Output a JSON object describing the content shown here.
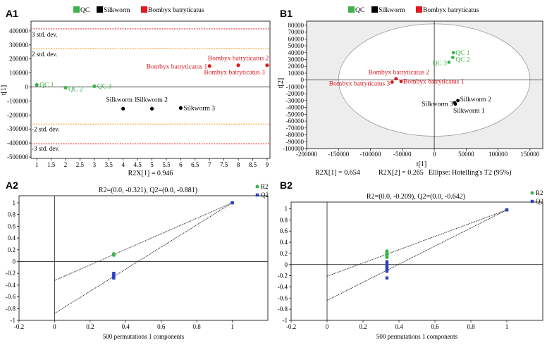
{
  "figure": {
    "colors": {
      "qc": "#3cb44b",
      "silkworm": "#000000",
      "bombyx": "#e0191f",
      "r2": "#3cb44b",
      "q2": "#2b3fc2",
      "limit_red": "#e0191f",
      "limit_orange": "#f0a020",
      "ellipse_fill": "#ededed"
    }
  },
  "chart_data": [
    {
      "id": "A1",
      "panel_label": "A1",
      "type": "scatter",
      "legend": [
        "QC",
        "Silkworm",
        "Bombyx batryticatus"
      ],
      "ylabel": "t[1]",
      "xlabel": "R2X[1] = 0.946",
      "xlim": [
        0.8,
        9.1
      ],
      "ylim": [
        -510000,
        470000
      ],
      "xticks": [
        "1",
        "1.5",
        "2",
        "2.5",
        "3",
        "3.5",
        "4",
        "4.5",
        "5",
        "5.5",
        "6",
        "6.5",
        "7",
        "7.5",
        "8",
        "8.5",
        "9"
      ],
      "yticks": [
        "400000",
        "300000",
        "200000",
        "100000",
        "0",
        "-100000",
        "-200000",
        "-300000",
        "-400000",
        "-500000"
      ],
      "limits": [
        {
          "value": 415000,
          "label": "3 std. dev."
        },
        {
          "value": 275000,
          "label": "2 std. dev."
        },
        {
          "value": -265000,
          "label": "-2 std. dev."
        },
        {
          "value": -405000,
          "label": "-3 std. dev."
        }
      ],
      "points": [
        {
          "group": "qc",
          "x": 1,
          "y": 15000,
          "label": "QC 1"
        },
        {
          "group": "qc",
          "x": 2,
          "y": -5000,
          "label": "QC 2"
        },
        {
          "group": "qc",
          "x": 3,
          "y": 5000,
          "label": "QC 3"
        },
        {
          "group": "silkworm",
          "x": 4,
          "y": -155000,
          "label": "Silkworm 1"
        },
        {
          "group": "silkworm",
          "x": 5,
          "y": -155000,
          "label": "Silkworm 2"
        },
        {
          "group": "silkworm",
          "x": 6,
          "y": -150000,
          "label": "Silkworm 3"
        },
        {
          "group": "bombyx",
          "x": 7,
          "y": 150000,
          "label": "Bombyx batryticatus 1"
        },
        {
          "group": "bombyx",
          "x": 8,
          "y": 155000,
          "label": "Bombyx batryticatus 2"
        },
        {
          "group": "bombyx",
          "x": 9,
          "y": 155000,
          "label": "Bombyx batryticatus 3"
        }
      ]
    },
    {
      "id": "B1",
      "panel_label": "B1",
      "type": "scatter",
      "legend": [
        "QC",
        "Silkworm",
        "Bombyx batryticatus"
      ],
      "ylabel": "t[2]",
      "xlabel": "t[1]",
      "footer": [
        "R2X[1] = 0.654",
        "R2X[2] = 0.265",
        "Ellipse: Hotelling's T2 (95%)"
      ],
      "xlim": [
        -200000,
        170000
      ],
      "ylim": [
        -100000,
        86000
      ],
      "ellipse": {
        "rx": 150000,
        "ry": 82000
      },
      "xticks": [
        "-200000",
        "-150000",
        "-100000",
        "-50000",
        "0",
        "50000",
        "100000",
        "150000"
      ],
      "yticks": [
        "80000",
        "70000",
        "60000",
        "50000",
        "40000",
        "30000",
        "20000",
        "10000",
        "0",
        "-10000",
        "-20000",
        "-30000",
        "-40000",
        "-50000",
        "-60000",
        "-70000",
        "-80000",
        "-90000",
        "-100000"
      ],
      "points": [
        {
          "group": "qc",
          "x": 30000,
          "y": 40000,
          "label": "QC 1"
        },
        {
          "group": "qc",
          "x": 23000,
          "y": 26000,
          "label": "QC 3"
        },
        {
          "group": "qc",
          "x": 29000,
          "y": 33000,
          "label": "QC 2"
        },
        {
          "group": "silkworm",
          "x": 37000,
          "y": -30000,
          "label": "Silkworm 2"
        },
        {
          "group": "silkworm",
          "x": 32000,
          "y": -33000,
          "label": "Silkworm 1"
        },
        {
          "group": "silkworm",
          "x": 33000,
          "y": -35000,
          "label": "Silkworm 3"
        },
        {
          "group": "bombyx",
          "x": -60000,
          "y": 2000,
          "label": "Bombyx batryticatus 2"
        },
        {
          "group": "bombyx",
          "x": -52000,
          "y": -2000,
          "label": "Bombyx batryticatus 1"
        },
        {
          "group": "bombyx",
          "x": -66000,
          "y": -3000,
          "label": "Bombyx batryticatus 3"
        }
      ]
    },
    {
      "id": "A2",
      "panel_label": "A2",
      "type": "scatter",
      "title": "R2=(0.0, -0.321), Q2=(0.0, -0.881)",
      "xlabel": "500 permutations 1 components",
      "legend": [
        "R2",
        "Q2"
      ],
      "xlim": [
        -0.2,
        1.2
      ],
      "ylim": [
        -1.0,
        1.12
      ],
      "xticks": [
        "-0.2",
        "0",
        "0.2",
        "0.4",
        "0.6",
        "0.8",
        "1"
      ],
      "yticks": [
        "1",
        "0.8",
        "0.6",
        "0.4",
        "0.2",
        "0",
        "-0.2",
        "-0.4",
        "-0.6",
        "-0.8",
        "-1"
      ],
      "lines": [
        {
          "series": "R2",
          "x1": 0,
          "y1": -0.321,
          "x2": 1,
          "y2": 1.0
        },
        {
          "series": "Q2",
          "x1": 0,
          "y1": -0.881,
          "x2": 1,
          "y2": 1.0
        }
      ],
      "series": [
        {
          "name": "R2",
          "points": [
            [
              0.333,
              0.12
            ],
            [
              0.333,
              0.13
            ],
            [
              0.333,
              0.11
            ],
            [
              1,
              1.0
            ]
          ]
        },
        {
          "name": "Q2",
          "points": [
            [
              0.333,
              -0.2
            ],
            [
              0.333,
              -0.23
            ],
            [
              0.333,
              -0.26
            ],
            [
              0.333,
              -0.28
            ],
            [
              1,
              1.0
            ]
          ]
        }
      ]
    },
    {
      "id": "B2",
      "panel_label": "B2",
      "type": "scatter",
      "title": "R2=(0.0, -0.209), Q2=(0.0, -0.642)",
      "xlabel": "500 permutations 1 components",
      "legend": [
        "R2",
        "Q2"
      ],
      "xlim": [
        -0.2,
        1.2
      ],
      "ylim": [
        -1.0,
        1.12
      ],
      "xticks": [
        "-0.2",
        "0",
        "0.2",
        "0.4",
        "0.6",
        "0.8",
        "1"
      ],
      "yticks": [
        "1",
        "0.8",
        "0.6",
        "0.4",
        "0.2",
        "0",
        "-0.2",
        "-0.4",
        "-0.6",
        "-0.8",
        "-1"
      ],
      "lines": [
        {
          "series": "R2",
          "x1": 0,
          "y1": -0.209,
          "x2": 1,
          "y2": 0.98
        },
        {
          "series": "Q2",
          "x1": 0,
          "y1": -0.642,
          "x2": 1,
          "y2": 0.98
        }
      ],
      "series": [
        {
          "name": "R2",
          "points": [
            [
              0.333,
              0.24
            ],
            [
              0.333,
              0.21
            ],
            [
              0.333,
              0.18
            ],
            [
              0.333,
              0.15
            ],
            [
              0.333,
              0.13
            ],
            [
              1,
              0.98
            ]
          ]
        },
        {
          "name": "Q2",
          "points": [
            [
              0.333,
              0.05
            ],
            [
              0.333,
              0.0
            ],
            [
              0.333,
              -0.04
            ],
            [
              0.333,
              -0.08
            ],
            [
              0.333,
              -0.12
            ],
            [
              0.333,
              -0.24
            ],
            [
              1,
              0.98
            ]
          ]
        }
      ]
    }
  ]
}
